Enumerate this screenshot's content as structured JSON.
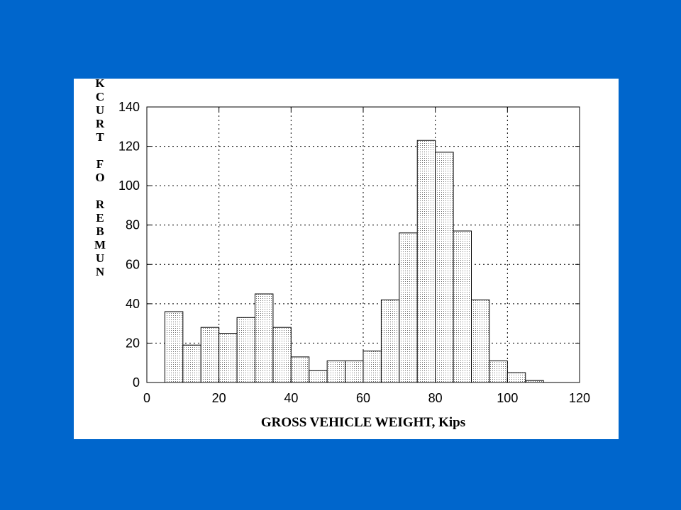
{
  "colors": {
    "background": "#0066cc",
    "panel": "#ffffff",
    "bar_fill": "#e6e6e6",
    "bar_stroke": "#000000",
    "grid": "#000000"
  },
  "chart_data": {
    "type": "bar",
    "xlabel": "GROSS VEHICLE WEIGHT, Kips",
    "ylabel": "NUMBER OF TRUCK",
    "ylabel_display": "KCURT FO REBMUN",
    "xlim": [
      0,
      120
    ],
    "ylim": [
      0,
      140
    ],
    "xticks": [
      0,
      20,
      40,
      60,
      80,
      100,
      120
    ],
    "yticks": [
      0,
      20,
      40,
      60,
      80,
      100,
      120,
      140
    ],
    "grid": true,
    "bin_width": 5,
    "bins": [
      5,
      10,
      15,
      20,
      25,
      30,
      35,
      40,
      45,
      50,
      55,
      60,
      65,
      70,
      75,
      80,
      85,
      90,
      95,
      100,
      105
    ],
    "values": [
      36,
      19,
      28,
      25,
      33,
      45,
      28,
      13,
      6,
      11,
      11,
      16,
      42,
      76,
      123,
      117,
      77,
      42,
      11,
      5,
      1
    ]
  }
}
